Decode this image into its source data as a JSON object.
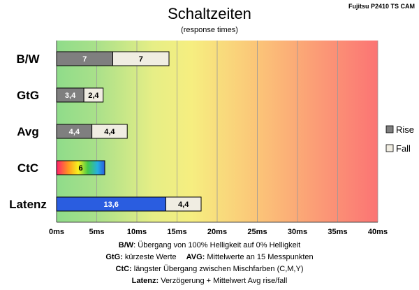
{
  "corner_label": "Fujitsu P2410 TS CAM",
  "chart_data": {
    "type": "bar",
    "orientation": "horizontal",
    "stacked": true,
    "title": "Schaltzeiten",
    "subtitle": "(response times)",
    "categories": [
      "B/W",
      "GtG",
      "Avg",
      "CtC",
      "Latenz"
    ],
    "series": [
      {
        "name": "Rise",
        "values": [
          7,
          3.4,
          4.4,
          6,
          13.6
        ],
        "labels": [
          "7",
          "3,4",
          "4,4",
          "6",
          "13,6"
        ],
        "color": "#7f7f7f"
      },
      {
        "name": "Fall",
        "values": [
          7,
          2.4,
          4.4,
          null,
          4.4
        ],
        "labels": [
          "7",
          "2,4",
          "4,4",
          "",
          "4,4"
        ],
        "color": "#f0ede2"
      }
    ],
    "special_colors": {
      "CtC": "rainbow",
      "Latenz": "#2a5de0"
    },
    "xlim": [
      0,
      40
    ],
    "xticks": [
      0,
      5,
      10,
      15,
      20,
      25,
      30,
      35,
      40
    ],
    "xtick_labels": [
      "0ms",
      "5ms",
      "10ms",
      "15ms",
      "20ms",
      "25ms",
      "30ms",
      "35ms",
      "40ms"
    ],
    "background": "gradient green-yellow-red",
    "grid": true,
    "legend": "right"
  },
  "footnotes": {
    "line1_term": "B/W",
    "line1_text": ": Übergang von 100% Helligkeit auf 0% Helligkeit",
    "line2_term_a": "GtG:",
    "line2_text_a": " kürzeste Werte",
    "line2_term_b": "AVG:",
    "line2_text_b": " Mittelwerte an 15 Messpunkten",
    "line3_term": "CtC:",
    "line3_text": " längster Übergang zwischen Mischfarben (C,M,Y)",
    "line4_term": "Latenz:",
    "line4_text": " Verzögerung + Mittelwert Avg rise/fall"
  }
}
